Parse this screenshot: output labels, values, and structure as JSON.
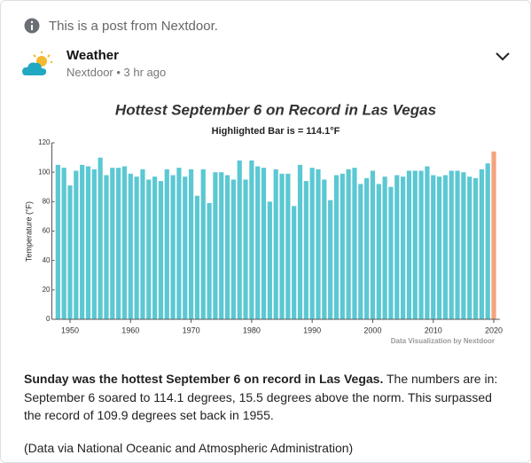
{
  "post": {
    "notice": "This is a post from Nextdoor.",
    "author": "Weather",
    "meta": "Nextdoor • 3 hr ago",
    "body_bold": "Sunday was the hottest September 6 on record in Las Vegas.",
    "body": "The numbers are in: September 6 soared to 114.1 degrees, 15.5 degrees above the norm. This surpassed the record of 109.9 degrees set back in 1955.",
    "source": "(Data via National Oceanic and Atmospheric Administration)"
  },
  "chart_data": {
    "type": "bar",
    "title": "Hottest September 6 on Record in Las Vegas",
    "subtitle": "Highlighted Bar is = 114.1°F",
    "ylabel": "Temperature (°F)",
    "credit": "Data Visualization by Nextdoor",
    "x": [
      1948,
      1949,
      1950,
      1951,
      1952,
      1953,
      1954,
      1955,
      1956,
      1957,
      1958,
      1959,
      1960,
      1961,
      1962,
      1963,
      1964,
      1965,
      1966,
      1967,
      1968,
      1969,
      1970,
      1971,
      1972,
      1973,
      1974,
      1975,
      1976,
      1977,
      1978,
      1979,
      1980,
      1981,
      1982,
      1983,
      1984,
      1985,
      1986,
      1987,
      1988,
      1989,
      1990,
      1991,
      1992,
      1993,
      1994,
      1995,
      1996,
      1997,
      1998,
      1999,
      2000,
      2001,
      2002,
      2003,
      2004,
      2005,
      2006,
      2007,
      2008,
      2009,
      2010,
      2011,
      2012,
      2013,
      2014,
      2015,
      2016,
      2017,
      2018,
      2019,
      2020
    ],
    "values": [
      105,
      103,
      91,
      101,
      105,
      104,
      102,
      109.9,
      98,
      103,
      103,
      104,
      99,
      97,
      102,
      95,
      97,
      94,
      102,
      98,
      103,
      97,
      102,
      84,
      102,
      79,
      100,
      100,
      98,
      95,
      108,
      95,
      108,
      104,
      103,
      80,
      102,
      99,
      99,
      77,
      105,
      94,
      103,
      102,
      95,
      81,
      98,
      99,
      102,
      103,
      92,
      96,
      101,
      92,
      97,
      90,
      98,
      97,
      101,
      101,
      101,
      104,
      98,
      97,
      98,
      101,
      101,
      100,
      97,
      96,
      102,
      106,
      114.1
    ],
    "color": "#5bc8d3",
    "highlight": {
      "x": 2020,
      "color": "#f4a37c"
    },
    "xlim": [
      1947,
      2021
    ],
    "xticks": [
      1950,
      1960,
      1970,
      1980,
      1990,
      2000,
      2010,
      2020
    ],
    "ylim": [
      0,
      120
    ],
    "yticks": [
      0,
      20,
      40,
      60,
      80,
      100,
      120
    ]
  }
}
